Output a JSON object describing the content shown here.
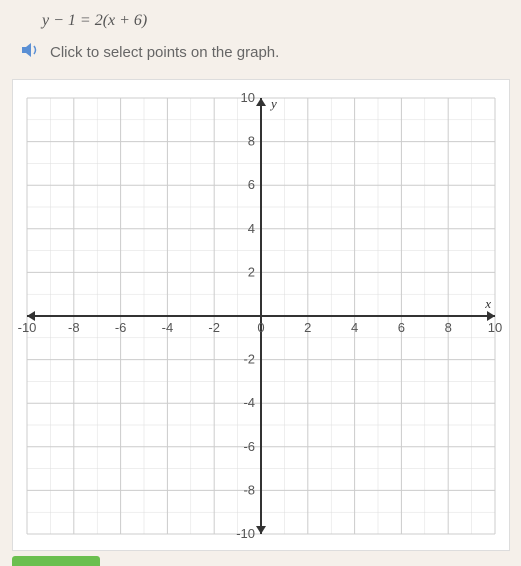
{
  "equation": "y − 1 = 2(x + 6)",
  "instruction": "Click to select points on the graph.",
  "graph": {
    "type": "scatter",
    "xlim": [
      -10,
      10
    ],
    "ylim": [
      -10,
      10
    ],
    "xtick_major_step": 2,
    "ytick_major_step": 2,
    "minor_step": 1,
    "x_ticks": [
      -10,
      -8,
      -6,
      -4,
      -2,
      0,
      2,
      4,
      6,
      8,
      10
    ],
    "y_ticks_pos": [
      2,
      4,
      6,
      8,
      10
    ],
    "y_ticks_neg": [
      -2,
      -4,
      -6,
      -8,
      -10
    ],
    "xlabel": "x",
    "ylabel": "y",
    "grid_color_major": "#cccccc",
    "grid_color_minor": "#dddddd",
    "axis_color": "#333333",
    "background_color": "#ffffff",
    "label_fontsize": 13,
    "tick_fontsize": 13,
    "axis_width": 2,
    "grid_width_major": 1,
    "grid_width_minor": 0.5
  },
  "colors": {
    "page_bg": "#f5f0ea",
    "text": "#666666",
    "equation_text": "#555555",
    "audio_icon": "#5a8fd4",
    "submit_button": "#6bbf4f"
  }
}
